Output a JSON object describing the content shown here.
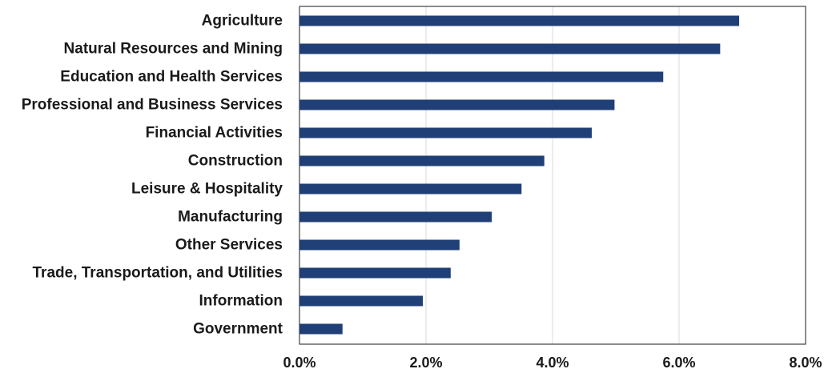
{
  "chart_data": {
    "type": "bar",
    "orientation": "horizontal",
    "categories": [
      "Agriculture",
      "Natural Resources and Mining",
      "Education and Health Services",
      "Professional and Business Services",
      "Financial Activities",
      "Construction",
      "Leisure & Hospitality",
      "Manufacturing",
      "Other Services",
      "Trade, Transportation, and Utilities",
      "Information",
      "Government"
    ],
    "values": [
      6.95,
      6.65,
      5.75,
      4.98,
      4.62,
      3.87,
      3.51,
      3.04,
      2.53,
      2.39,
      1.95,
      0.68
    ],
    "xlim": [
      0,
      8
    ],
    "xticks": [
      0,
      2,
      4,
      6,
      8
    ],
    "xtick_labels": [
      "0.0%",
      "2.0%",
      "4.0%",
      "6.0%",
      "8.0%"
    ],
    "title": "",
    "xlabel": "",
    "ylabel": "",
    "grid": "vertical",
    "bar_color": "#203f76",
    "grid_color": "#d9d9d9",
    "axis_color": "#404040"
  }
}
